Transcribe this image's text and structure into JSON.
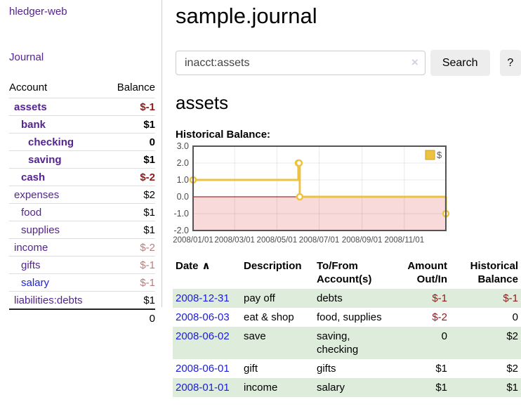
{
  "colors": {
    "link_purple": "#54248f",
    "link_blue": "#2121dd",
    "negative_strong": "#8e1a1a",
    "negative_muted": "#b97d7d",
    "row_stripe_green": "#deecdb",
    "series_gold": "#edc240"
  },
  "sidebar": {
    "brand": "hledger-web",
    "journal_link": "Journal",
    "table": {
      "account_header": "Account",
      "balance_header": "Balance",
      "rows": [
        {
          "name": "assets",
          "balance": "$-1",
          "level": 1,
          "bold": true,
          "balance_style": "neg-strong",
          "link_style": "purple"
        },
        {
          "name": "bank",
          "balance": "$1",
          "level": 2,
          "bold": true,
          "balance_style": "normal",
          "link_style": "purple"
        },
        {
          "name": "checking",
          "balance": "0",
          "level": 3,
          "bold": true,
          "balance_style": "normal",
          "link_style": "purple"
        },
        {
          "name": "saving",
          "balance": "$1",
          "level": 3,
          "bold": true,
          "balance_style": "normal",
          "link_style": "purple"
        },
        {
          "name": "cash",
          "balance": "$-2",
          "level": 2,
          "bold": true,
          "balance_style": "neg-strong",
          "link_style": "purple"
        },
        {
          "name": "expenses",
          "balance": "$2",
          "level": 1,
          "bold": false,
          "balance_style": "normal",
          "link_style": "purple"
        },
        {
          "name": "food",
          "balance": "$1",
          "level": 2,
          "bold": false,
          "balance_style": "normal",
          "link_style": "purple"
        },
        {
          "name": "supplies",
          "balance": "$1",
          "level": 2,
          "bold": false,
          "balance_style": "normal",
          "link_style": "purple"
        },
        {
          "name": "income",
          "balance": "$-2",
          "level": 1,
          "bold": false,
          "balance_style": "neg-muted",
          "link_style": "purple"
        },
        {
          "name": "gifts",
          "balance": "$-1",
          "level": 2,
          "bold": false,
          "balance_style": "neg-muted",
          "link_style": "purple"
        },
        {
          "name": "salary",
          "balance": "$-1",
          "level": 2,
          "bold": false,
          "balance_style": "neg-muted",
          "link_style": "blue"
        },
        {
          "name": "liabilities:debts",
          "balance": "$1",
          "level": 1,
          "bold": false,
          "balance_style": "normal",
          "link_style": "purple"
        }
      ],
      "total": "0"
    }
  },
  "main": {
    "title": "sample.journal",
    "search": {
      "value": "inacct:assets",
      "clear_icon": "×",
      "search_button": "Search",
      "help_button": "?"
    },
    "account_heading": "assets",
    "chart_heading": "Historical Balance:"
  },
  "chart_data": {
    "type": "line",
    "step": true,
    "title": "Historical Balance",
    "series": [
      {
        "name": "$",
        "color": "#edc240",
        "points": [
          [
            "2008-01-01",
            1.0
          ],
          [
            "2008-06-01",
            2.0
          ],
          [
            "2008-06-02",
            2.0
          ],
          [
            "2008-06-03",
            0.0
          ],
          [
            "2008-12-31",
            -1.0
          ]
        ]
      }
    ],
    "x_start": "2008-01-01",
    "x_ticks": [
      "2008/01/01",
      "2008/03/01",
      "2008/05/01",
      "2008/07/01",
      "2008/09/01",
      "2008/11/01"
    ],
    "y_ticks": [
      "3.0",
      "2.0",
      "1.0",
      "0.0",
      "-1.0",
      "-2.0"
    ],
    "ylim": [
      -2,
      3
    ],
    "xlim_days": [
      0,
      365
    ],
    "grid": true,
    "legend": {
      "label": "$",
      "position": "top-right"
    },
    "zero_line_color": "#8b0000",
    "negative_fill": "#f9dada",
    "border_color": "#545454"
  },
  "transactions": {
    "headers": {
      "date": "Date",
      "sort_icon": "∧",
      "description": "Description",
      "accounts": "To/From Account(s)",
      "amount": "Amount Out/In",
      "balance": "Historical Balance"
    },
    "rows": [
      {
        "date": "2008-12-31",
        "description": "pay off",
        "accounts": "debts",
        "amount": "$-1",
        "balance": "$-1",
        "amount_style": "neg-strong",
        "balance_style": "neg-strong"
      },
      {
        "date": "2008-06-03",
        "description": "eat & shop",
        "accounts": "food, supplies",
        "amount": "$-2",
        "balance": "0",
        "amount_style": "neg-strong",
        "balance_style": "normal"
      },
      {
        "date": "2008-06-02",
        "description": "save",
        "accounts": "saving, checking",
        "amount": "0",
        "balance": "$2",
        "amount_style": "normal",
        "balance_style": "normal"
      },
      {
        "date": "2008-06-01",
        "description": "gift",
        "accounts": "gifts",
        "amount": "$1",
        "balance": "$2",
        "amount_style": "normal",
        "balance_style": "normal"
      },
      {
        "date": "2008-01-01",
        "description": "income",
        "accounts": "salary",
        "amount": "$1",
        "balance": "$1",
        "amount_style": "normal",
        "balance_style": "normal"
      }
    ]
  }
}
